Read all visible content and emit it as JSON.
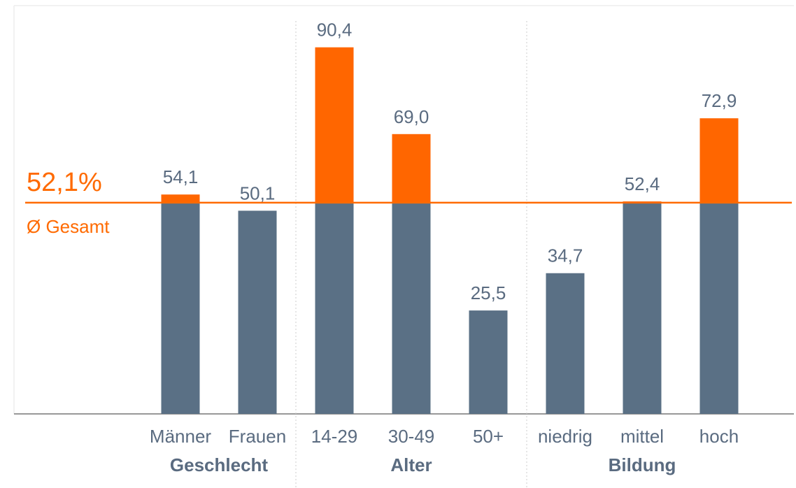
{
  "chart_data": {
    "type": "bar",
    "title": "",
    "xlabel": "",
    "ylabel": "",
    "ylim": [
      0,
      100
    ],
    "grid": false,
    "legend": "none",
    "groups": [
      {
        "label": "Geschlecht",
        "categories": [
          "Männer",
          "Frauen"
        ],
        "values": [
          54.1,
          50.1
        ],
        "value_labels": [
          "54,1",
          "50,1"
        ]
      },
      {
        "label": "Alter",
        "categories": [
          "14-29",
          "30-49",
          "50+"
        ],
        "values": [
          90.4,
          69.0,
          25.5
        ],
        "value_labels": [
          "90,4",
          "69,0",
          "25,5"
        ]
      },
      {
        "label": "Bildung",
        "categories": [
          "niedrig",
          "mittel",
          "hoch"
        ],
        "values": [
          34.7,
          52.4,
          72.9
        ],
        "value_labels": [
          "34,7",
          "52,4",
          "72,9"
        ]
      }
    ],
    "average": {
      "value": 52.1,
      "value_label": "52,1%",
      "label": "Ø Gesamt"
    },
    "colors": {
      "base": "#5a7085",
      "above_average": "#ff6600",
      "text": "#5a6b80",
      "average": "#ff6a00",
      "separator": "#cccccc",
      "axis": "#777777"
    }
  }
}
